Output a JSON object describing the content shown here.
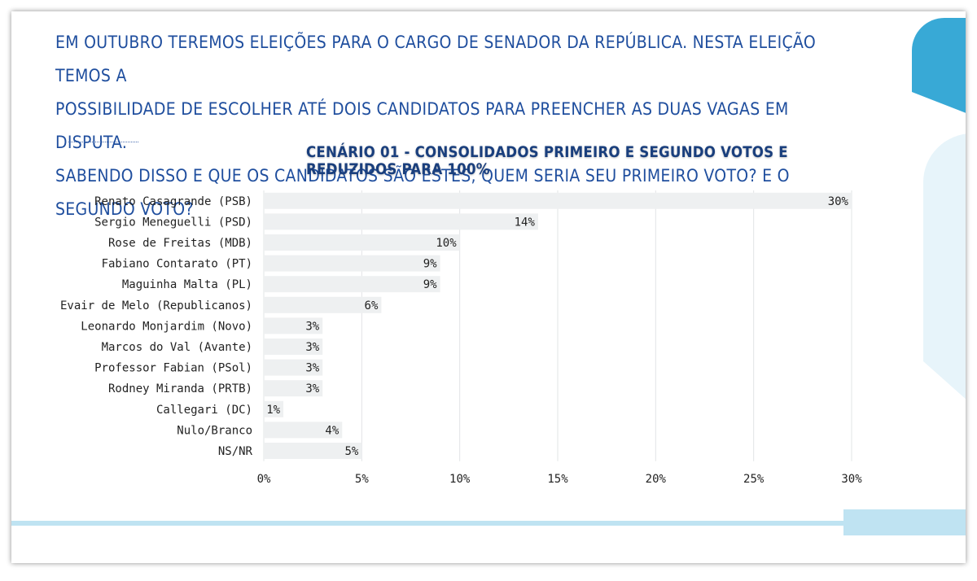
{
  "question": {
    "lines": [
      "EM OUTUBRO TEREMOS ELEIÇÕES PARA O CARGO DE SENADOR DA REPÚBLICA. NESTA ELEIÇÃO TEMOS A",
      "POSSIBILIDADE DE ESCOLHER ATÉ DOIS CANDIDATOS PARA PREENCHER AS DUAS VAGAS EM DISPUTA.",
      "SABENDO DISSO E QUE OS CANDIDATOS SÃO ESTES, QUEM SERIA SEU PRIMEIRO VOTO? E O SEGUNDO VOTO?"
    ]
  },
  "colors": {
    "bar": "#eef0f1",
    "grid": "#e2e4e6",
    "text": "#222222",
    "title": "#1a3f7d",
    "question": "#1f4e9e"
  },
  "chart_data": {
    "type": "bar",
    "orientation": "horizontal",
    "title": "CENÁRIO 01 - CONSOLIDADOS PRIMEIRO E SEGUNDO VOTOS E REDUZIDOS PARA 100%",
    "xlabel": "",
    "ylabel": "",
    "xlim": [
      0,
      30
    ],
    "grid": true,
    "categories": [
      "Renato Casagrande (PSB)",
      "Sergio Meneguelli (PSD)",
      "Rose de Freitas (MDB)",
      "Fabiano Contarato (PT)",
      "Maguinha Malta (PL)",
      "Evair de Melo (Republicanos)",
      "Leonardo Monjardim (Novo)",
      "Marcos do Val (Avante)",
      "Professor Fabian (PSol)",
      "Rodney Miranda (PRTB)",
      "Callegari (DC)",
      "Nulo/Branco",
      "NS/NR"
    ],
    "values": [
      30,
      14,
      10,
      9,
      9,
      6,
      3,
      3,
      3,
      3,
      1,
      4,
      5
    ],
    "value_labels": [
      "30%",
      "14%",
      "10%",
      "9%",
      "9%",
      "6%",
      "3%",
      "3%",
      "3%",
      "3%",
      "1%",
      "4%",
      "5%"
    ],
    "ticks": [
      0,
      5,
      10,
      15,
      20,
      25,
      30
    ],
    "tick_labels": [
      "0%",
      "5%",
      "10%",
      "15%",
      "20%",
      "25%",
      "30%"
    ]
  }
}
